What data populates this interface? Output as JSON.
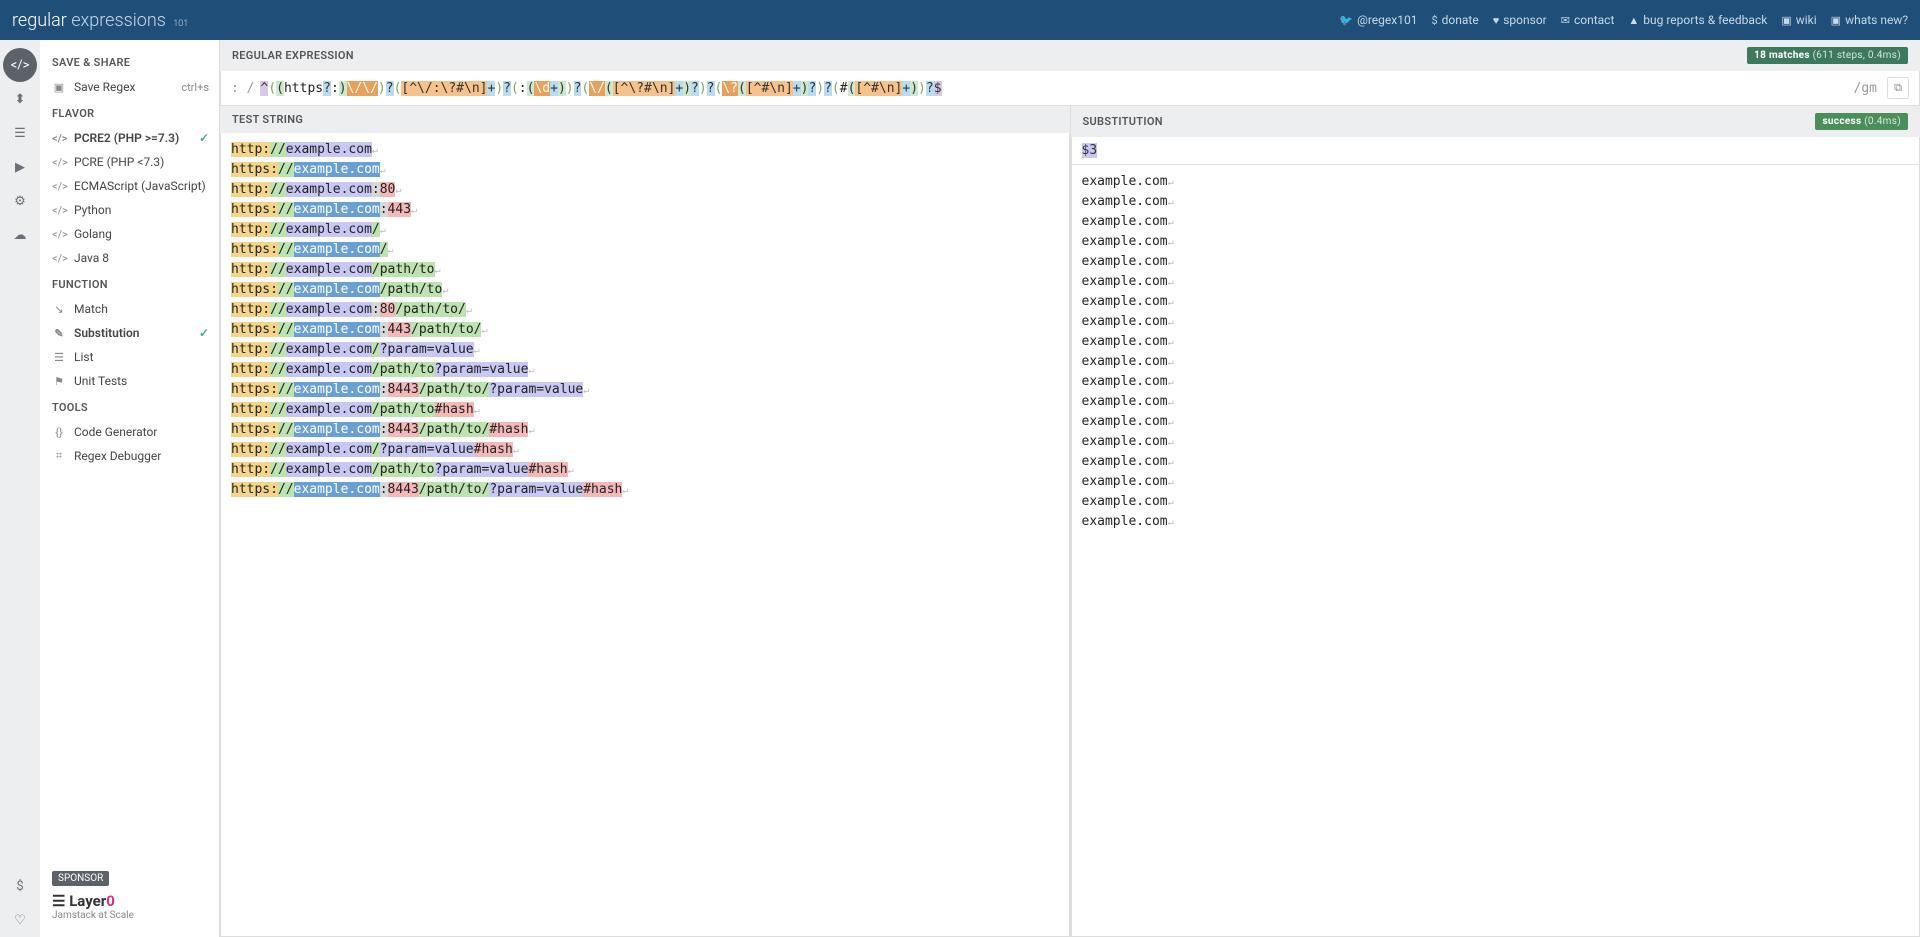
{
  "header": {
    "logo_regular": "regular",
    "logo_expressions": "expressions",
    "logo_sub": "101",
    "links": [
      {
        "icon": "🐦",
        "label": "@regex101"
      },
      {
        "icon": "$",
        "label": "donate"
      },
      {
        "icon": "♥",
        "label": "sponsor"
      },
      {
        "icon": "✉",
        "label": "contact"
      },
      {
        "icon": "▲",
        "label": "bug reports & feedback"
      },
      {
        "icon": "▣",
        "label": "wiki"
      },
      {
        "icon": "▣",
        "label": "whats new?"
      }
    ]
  },
  "iconbar": {
    "items": [
      "</>",
      "⬍",
      "☰",
      "▶",
      "⚙",
      "☁"
    ],
    "bottom": [
      "$",
      "♡"
    ]
  },
  "sidebar": {
    "save_share": "SAVE & SHARE",
    "save_regex": "Save Regex",
    "save_kbd": "ctrl+s",
    "flavor": "FLAVOR",
    "flavors": [
      {
        "label": "PCRE2 (PHP >=7.3)",
        "sel": true
      },
      {
        "label": "PCRE (PHP <7.3)",
        "sel": false
      },
      {
        "label": "ECMAScript (JavaScript)",
        "sel": false
      },
      {
        "label": "Python",
        "sel": false
      },
      {
        "label": "Golang",
        "sel": false
      },
      {
        "label": "Java 8",
        "sel": false
      }
    ],
    "function": "FUNCTION",
    "functions": [
      {
        "label": "Match",
        "ic": "↘",
        "sel": false
      },
      {
        "label": "Substitution",
        "ic": "✎",
        "sel": true
      },
      {
        "label": "List",
        "ic": "☰",
        "sel": false
      },
      {
        "label": "Unit Tests",
        "ic": "⚑",
        "sel": false
      }
    ],
    "tools": "TOOLS",
    "tools_items": [
      {
        "label": "Code Generator",
        "ic": "{}"
      },
      {
        "label": "Regex Debugger",
        "ic": "⌗"
      }
    ],
    "sponsor_badge": "SPONSOR",
    "sponsor_name": "Layer",
    "sponsor_accent": "0",
    "sponsor_tag": "Jamstack at Scale"
  },
  "regex": {
    "heading": "REGULAR EXPRESSION",
    "matches_badge": "18 matches",
    "matches_detail": "(611 steps, 0.4ms)",
    "delim_open": ": /",
    "delim_close": "/",
    "flags": "gm",
    "tokens": [
      {
        "t": "^",
        "c": "tk-anchor"
      },
      {
        "t": "(",
        "c": "tk-grp"
      },
      {
        "t": "(",
        "c": "tk-selgrp"
      },
      {
        "t": "https",
        "c": "tk-lit"
      },
      {
        "t": "?",
        "c": "tk-quant"
      },
      {
        "t": ":",
        "c": "tk-lit"
      },
      {
        "t": ")",
        "c": "tk-selgrp"
      },
      {
        "t": "\\/\\/",
        "c": "tk-esc"
      },
      {
        "t": ")",
        "c": "tk-grp"
      },
      {
        "t": "?",
        "c": "tk-quant"
      },
      {
        "t": "(",
        "c": "tk-grp"
      },
      {
        "t": "[^\\/:\\?#\\n]",
        "c": "tk-class"
      },
      {
        "t": "+",
        "c": "tk-quant"
      },
      {
        "t": ")",
        "c": "tk-grp"
      },
      {
        "t": "?",
        "c": "tk-quant"
      },
      {
        "t": "(",
        "c": "tk-grp"
      },
      {
        "t": ":",
        "c": "tk-lit"
      },
      {
        "t": "(",
        "c": "tk-selgrp"
      },
      {
        "t": "\\d",
        "c": "tk-esc"
      },
      {
        "t": "+",
        "c": "tk-quant"
      },
      {
        "t": ")",
        "c": "tk-selgrp"
      },
      {
        "t": ")",
        "c": "tk-grp"
      },
      {
        "t": "?",
        "c": "tk-quant"
      },
      {
        "t": "(",
        "c": "tk-grp"
      },
      {
        "t": "\\/",
        "c": "tk-esc"
      },
      {
        "t": "(",
        "c": "tk-selgrp"
      },
      {
        "t": "[^\\?#\\n]",
        "c": "tk-class"
      },
      {
        "t": "+",
        "c": "tk-quant"
      },
      {
        "t": ")",
        "c": "tk-selgrp"
      },
      {
        "t": "?",
        "c": "tk-quant"
      },
      {
        "t": ")",
        "c": "tk-grp"
      },
      {
        "t": "?",
        "c": "tk-quant"
      },
      {
        "t": "(",
        "c": "tk-grp"
      },
      {
        "t": "\\?",
        "c": "tk-esc"
      },
      {
        "t": "(",
        "c": "tk-selgrp"
      },
      {
        "t": "[^#\\n]",
        "c": "tk-class"
      },
      {
        "t": "+",
        "c": "tk-quant"
      },
      {
        "t": ")",
        "c": "tk-selgrp"
      },
      {
        "t": "?",
        "c": "tk-quant"
      },
      {
        "t": ")",
        "c": "tk-grp"
      },
      {
        "t": "?",
        "c": "tk-quant"
      },
      {
        "t": "(",
        "c": "tk-grp"
      },
      {
        "t": "#",
        "c": "tk-lit"
      },
      {
        "t": "(",
        "c": "tk-selgrp"
      },
      {
        "t": "[^#\\n]",
        "c": "tk-class"
      },
      {
        "t": "+",
        "c": "tk-quant"
      },
      {
        "t": ")",
        "c": "tk-selgrp"
      },
      {
        "t": ")",
        "c": "tk-grp"
      },
      {
        "t": "?",
        "c": "tk-quant"
      },
      {
        "t": "$",
        "c": "tk-anchor"
      }
    ]
  },
  "test": {
    "heading": "TEST STRING",
    "lines": [
      [
        [
          "http:",
          "h-scheme"
        ],
        [
          "//",
          "h-slashes"
        ],
        [
          "example.com",
          "h-host"
        ]
      ],
      [
        [
          "https:",
          "h-scheme"
        ],
        [
          "//",
          "h-slashes"
        ],
        [
          "example.com",
          "h-sel"
        ]
      ],
      [
        [
          "http:",
          "h-scheme"
        ],
        [
          "//",
          "h-slashes"
        ],
        [
          "example.com",
          "h-host"
        ],
        [
          ":",
          "h-sep"
        ],
        [
          "80",
          "h-port"
        ]
      ],
      [
        [
          "https:",
          "h-scheme"
        ],
        [
          "//",
          "h-slashes"
        ],
        [
          "example.com",
          "h-sel"
        ],
        [
          ":",
          "h-sep"
        ],
        [
          "443",
          "h-port"
        ]
      ],
      [
        [
          "http:",
          "h-scheme"
        ],
        [
          "//",
          "h-slashes"
        ],
        [
          "example.com",
          "h-host"
        ],
        [
          "/",
          "h-slashes"
        ]
      ],
      [
        [
          "https:",
          "h-scheme"
        ],
        [
          "//",
          "h-slashes"
        ],
        [
          "example.com",
          "h-sel"
        ],
        [
          "/",
          "h-slashes"
        ]
      ],
      [
        [
          "http:",
          "h-scheme"
        ],
        [
          "//",
          "h-slashes"
        ],
        [
          "example.com",
          "h-host"
        ],
        [
          "/path/to",
          "h-path"
        ]
      ],
      [
        [
          "https:",
          "h-scheme"
        ],
        [
          "//",
          "h-slashes"
        ],
        [
          "example.com",
          "h-sel"
        ],
        [
          "/path/to",
          "h-path"
        ]
      ],
      [
        [
          "http:",
          "h-scheme"
        ],
        [
          "//",
          "h-slashes"
        ],
        [
          "example.com",
          "h-host"
        ],
        [
          ":",
          "h-sep"
        ],
        [
          "80",
          "h-port"
        ],
        [
          "/path/to/",
          "h-path"
        ]
      ],
      [
        [
          "https:",
          "h-scheme"
        ],
        [
          "//",
          "h-slashes"
        ],
        [
          "example.com",
          "h-sel"
        ],
        [
          ":",
          "h-sep"
        ],
        [
          "443",
          "h-port"
        ],
        [
          "/path/to/",
          "h-path"
        ]
      ],
      [
        [
          "http:",
          "h-scheme"
        ],
        [
          "//",
          "h-slashes"
        ],
        [
          "example.com",
          "h-host"
        ],
        [
          "/",
          "h-slashes"
        ],
        [
          "?param=value",
          "h-query"
        ]
      ],
      [
        [
          "http:",
          "h-scheme"
        ],
        [
          "//",
          "h-slashes"
        ],
        [
          "example.com",
          "h-host"
        ],
        [
          "/path/to",
          "h-path"
        ],
        [
          "?param=value",
          "h-query"
        ]
      ],
      [
        [
          "https:",
          "h-scheme"
        ],
        [
          "//",
          "h-slashes"
        ],
        [
          "example.com",
          "h-sel"
        ],
        [
          ":",
          "h-sep"
        ],
        [
          "8443",
          "h-port"
        ],
        [
          "/path/to/",
          "h-path"
        ],
        [
          "?param=value",
          "h-query"
        ]
      ],
      [
        [
          "http:",
          "h-scheme"
        ],
        [
          "//",
          "h-slashes"
        ],
        [
          "example.com",
          "h-host"
        ],
        [
          "/path/to",
          "h-path"
        ],
        [
          "#hash",
          "h-hash"
        ]
      ],
      [
        [
          "https:",
          "h-scheme"
        ],
        [
          "//",
          "h-slashes"
        ],
        [
          "example.com",
          "h-sel"
        ],
        [
          ":",
          "h-sep"
        ],
        [
          "8443",
          "h-port"
        ],
        [
          "/path/to/",
          "h-path"
        ],
        [
          "#hash",
          "h-hash"
        ]
      ],
      [
        [
          "http:",
          "h-scheme"
        ],
        [
          "//",
          "h-slashes"
        ],
        [
          "example.com",
          "h-host"
        ],
        [
          "/",
          "h-slashes"
        ],
        [
          "?param=value",
          "h-query"
        ],
        [
          "#hash",
          "h-hash"
        ]
      ],
      [
        [
          "http:",
          "h-scheme"
        ],
        [
          "//",
          "h-slashes"
        ],
        [
          "example.com",
          "h-host"
        ],
        [
          "/path/to",
          "h-path"
        ],
        [
          "?param=value",
          "h-query"
        ],
        [
          "#hash",
          "h-hash"
        ]
      ],
      [
        [
          "https:",
          "h-scheme"
        ],
        [
          "//",
          "h-slashes"
        ],
        [
          "example.com",
          "h-sel"
        ],
        [
          ":",
          "h-sep"
        ],
        [
          "8443",
          "h-port"
        ],
        [
          "/path/to/",
          "h-path"
        ],
        [
          "?param=value",
          "h-query"
        ],
        [
          "#hash",
          "h-hash"
        ]
      ]
    ]
  },
  "subst": {
    "heading": "SUBSTITUTION",
    "success_badge": "success",
    "success_detail": "(0.4ms)",
    "pattern": "$3",
    "result_line": "example.com",
    "result_count": 18
  }
}
